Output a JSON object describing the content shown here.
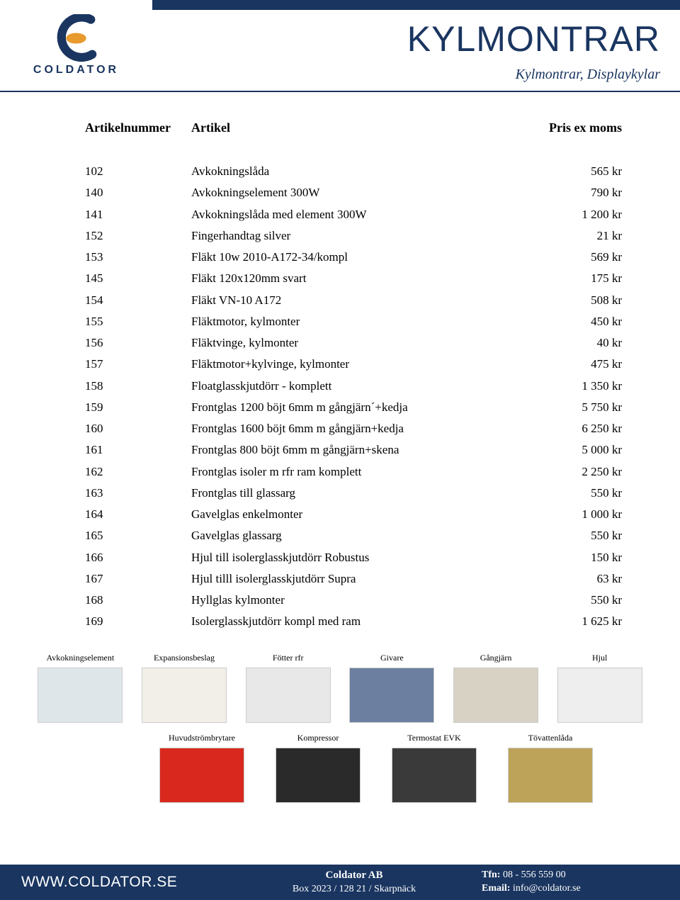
{
  "brand": {
    "name": "COLDATOR",
    "colors": {
      "primary": "#1a3560",
      "accent": "#e89a2f",
      "white": "#ffffff"
    }
  },
  "header": {
    "title": "KYLMONTRAR",
    "subtitle": "Kylmontrar, Displaykylar"
  },
  "table": {
    "columns": [
      "Artikelnummer",
      "Artikel",
      "Pris ex moms"
    ],
    "rows": [
      [
        "102",
        "Avkokningslåda",
        "565 kr"
      ],
      [
        "140",
        "Avkokningselement 300W",
        "790 kr"
      ],
      [
        "141",
        "Avkokningslåda med element 300W",
        "1 200 kr"
      ],
      [
        "152",
        "Fingerhandtag silver",
        "21 kr"
      ],
      [
        "153",
        "Fläkt 10w 2010-A172-34/kompl",
        "569 kr"
      ],
      [
        "145",
        "Fläkt 120x120mm svart",
        "175 kr"
      ],
      [
        "154",
        "Fläkt VN-10 A172",
        "508 kr"
      ],
      [
        "155",
        "Fläktmotor, kylmonter",
        "450 kr"
      ],
      [
        "156",
        "Fläktvinge, kylmonter",
        "40 kr"
      ],
      [
        "157",
        "Fläktmotor+kylvinge, kylmonter",
        "475 kr"
      ],
      [
        "158",
        "Floatglasskjutdörr - komplett",
        "1 350 kr"
      ],
      [
        "159",
        "Frontglas 1200 böjt 6mm m gångjärn´+kedja",
        "5 750 kr"
      ],
      [
        "160",
        "Frontglas 1600 böjt 6mm m gångjärn+kedja",
        "6 250 kr"
      ],
      [
        "161",
        "Frontglas 800 böjt 6mm m gångjärn+skena",
        "5 000 kr"
      ],
      [
        "162",
        "Frontglas isoler m rfr ram komplett",
        "2 250 kr"
      ],
      [
        "163",
        "Frontglas till glassarg",
        "550 kr"
      ],
      [
        "164",
        "Gavelglas enkelmonter",
        "1 000 kr"
      ],
      [
        "165",
        "Gavelglas glassarg",
        "550 kr"
      ],
      [
        "166",
        "Hjul till isolerglasskjutdörr Robustus",
        "150 kr"
      ],
      [
        "167",
        "Hjul tilll isolerglasskjutdörr Supra",
        "63 kr"
      ],
      [
        "168",
        "Hyllglas kylmonter",
        "550 kr"
      ],
      [
        "169",
        "Isolerglasskjutdörr kompl med ram",
        "1 625 kr"
      ]
    ]
  },
  "thumbnails": {
    "row1": [
      {
        "caption": "Avkokningselement",
        "bg": "#dfe6ea"
      },
      {
        "caption": "Expansionsbeslag",
        "bg": "#f2efe8"
      },
      {
        "caption": "Fötter rfr",
        "bg": "#e8e8e8"
      },
      {
        "caption": "Givare",
        "bg": "#6d7fa0"
      },
      {
        "caption": "Gångjärn",
        "bg": "#d8d2c4"
      },
      {
        "caption": "Hjul",
        "bg": "#eeeeee"
      }
    ],
    "row2": [
      {
        "caption": "Huvudströmbrytare",
        "bg": "#d9281e"
      },
      {
        "caption": "Kompressor",
        "bg": "#2a2a2a"
      },
      {
        "caption": "Termostat EVK",
        "bg": "#3a3a3a"
      },
      {
        "caption": "Tövattenlåda",
        "bg": "#bda35a"
      }
    ]
  },
  "footer": {
    "website": "WWW.COLDATOR.SE",
    "company": "Coldator AB",
    "address": "Box 2023 / 128 21 / Skarpnäck",
    "phone_label": "Tfn:",
    "phone": "08 - 556 559 00",
    "email_label": "Email:",
    "email": "info@coldator.se"
  }
}
